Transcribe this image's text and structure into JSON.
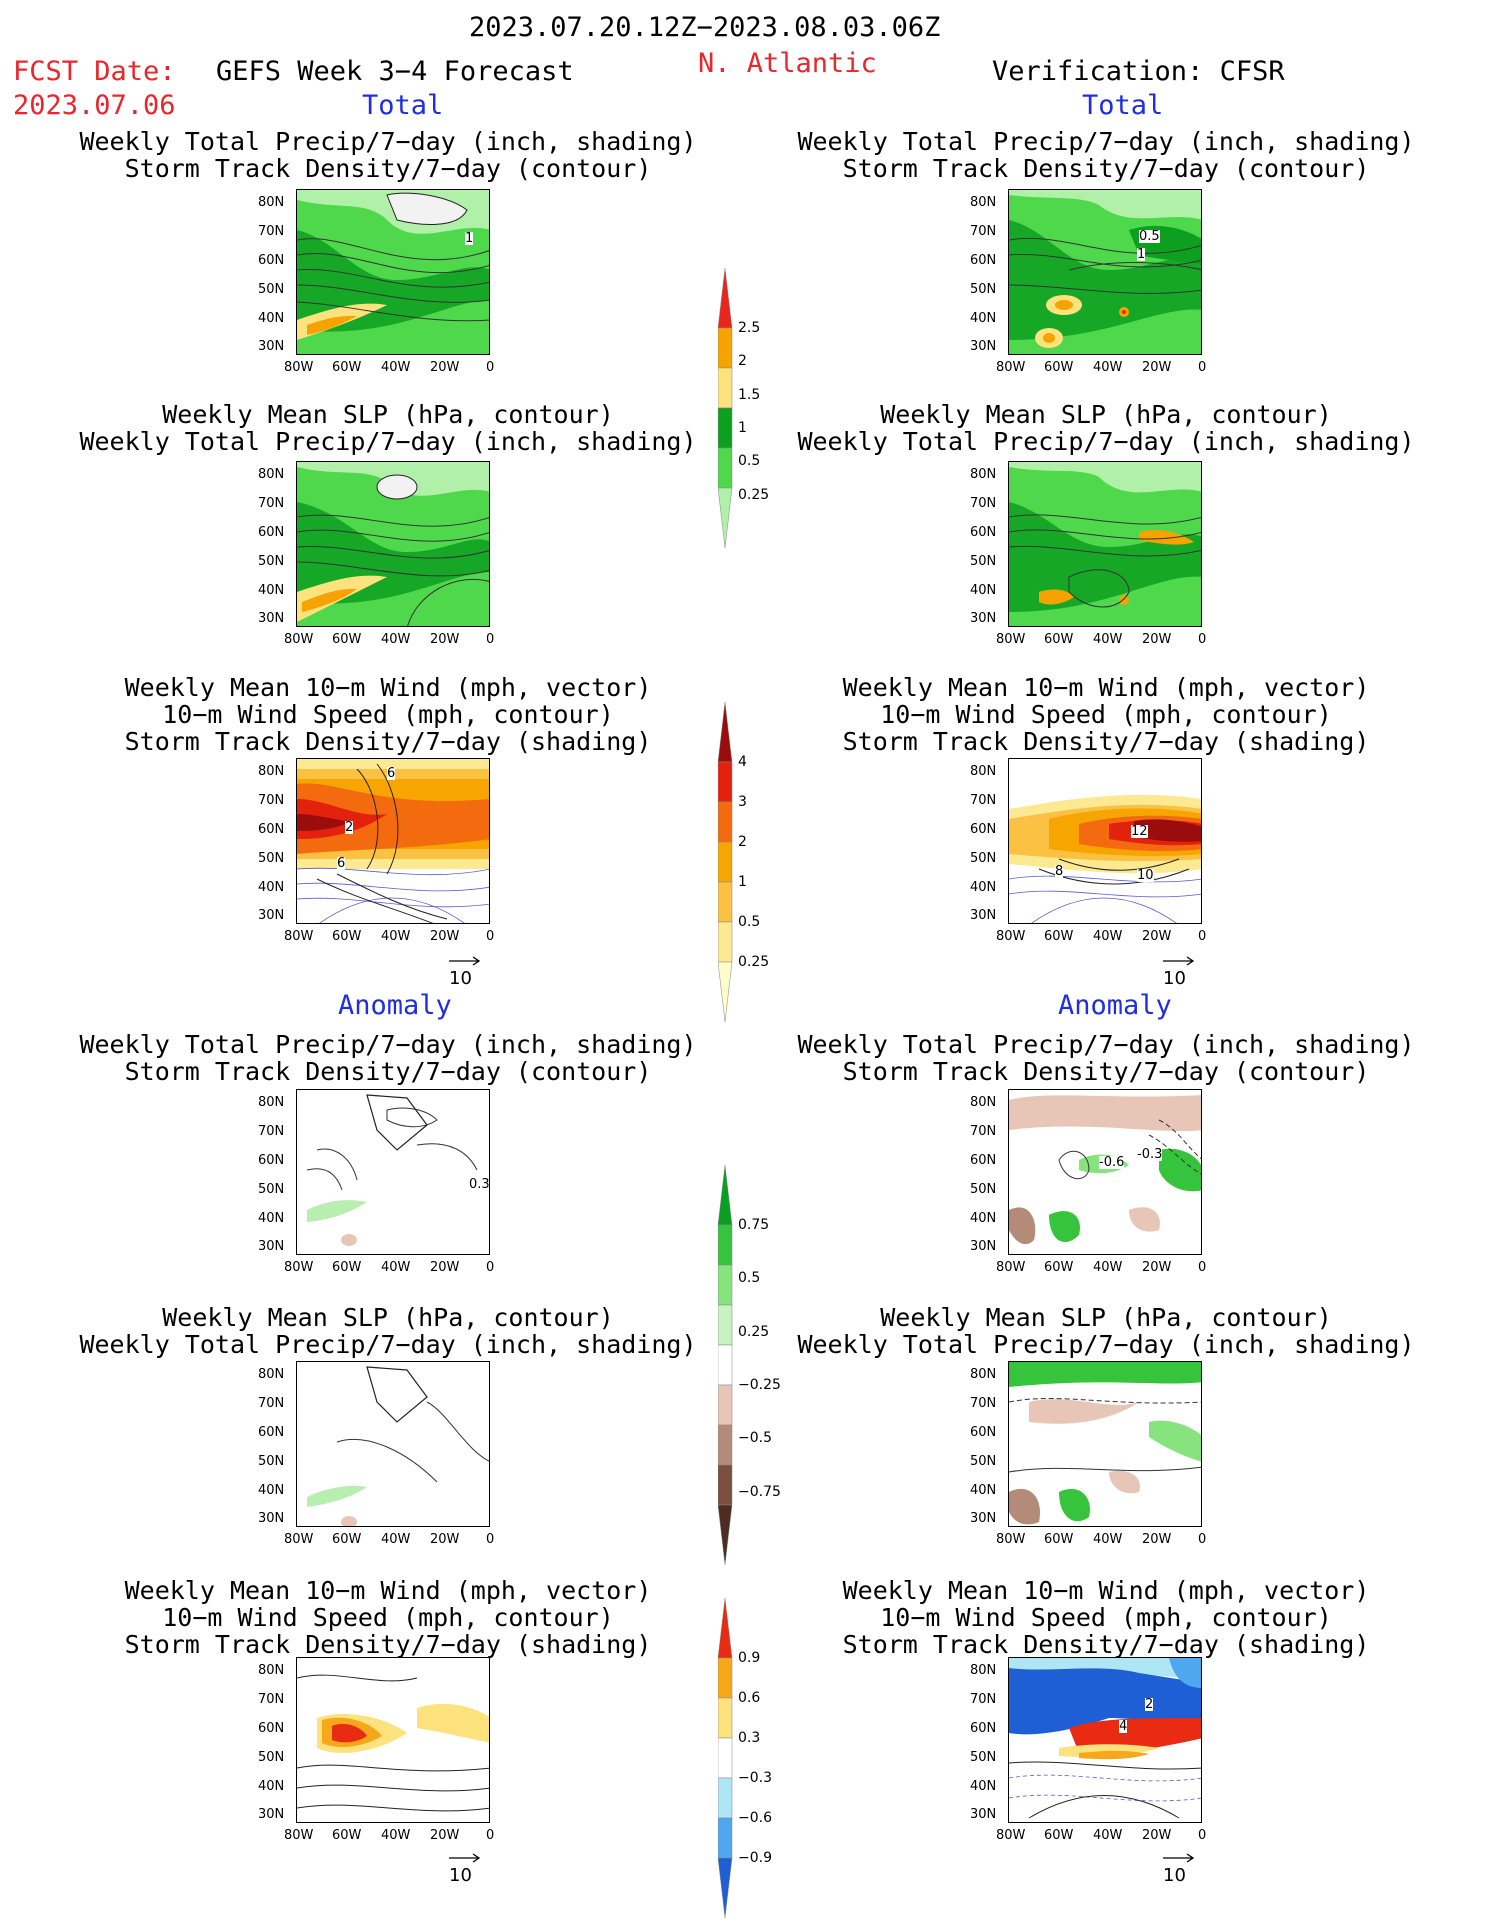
{
  "header": {
    "date_range": "2023.07.20.12Z−2023.08.03.06Z",
    "fcst_label": "FCST Date:",
    "fcst_date": "2023.07.06",
    "forecast_name": "GEFS Week 3−4 Forecast",
    "region": "N. Atlantic",
    "verification": "Verification: CFSR",
    "section_total": "Total",
    "section_anomaly": "Anomaly"
  },
  "titles": {
    "precip_storm": [
      "Weekly Total Precip/7−day (inch, shading)",
      "Storm Track Density/7−day (contour)"
    ],
    "slp_precip": [
      "Weekly Mean SLP (hPa, contour)",
      "Weekly Total Precip/7−day (inch, shading)"
    ],
    "wind": [
      "Weekly Mean 10−m Wind (mph, vector)",
      "10−m Wind Speed (mph, contour)",
      "Storm Track Density/7−day (shading)"
    ]
  },
  "axes": {
    "lat_labels": [
      "80N",
      "70N",
      "60N",
      "50N",
      "40N",
      "30N"
    ],
    "lon_labels": [
      "80W",
      "60W",
      "40W",
      "20W",
      "0"
    ],
    "vector_ref": "10"
  },
  "colorbars": {
    "precip_total": {
      "labels": [
        "2.5",
        "2",
        "1.5",
        "1",
        "0.5",
        "0.25"
      ],
      "colors": [
        "#e8261c",
        "#f6a300",
        "#fde27d",
        "#0d9f20",
        "#4fd84b",
        "#b0f0a8"
      ]
    },
    "storm_total": {
      "labels": [
        "4",
        "3",
        "2",
        "1",
        "0.5",
        "0.25"
      ],
      "colors": [
        "#9b0d0d",
        "#e3220e",
        "#f46a0e",
        "#f7a500",
        "#fac142",
        "#fde992",
        "#fefcc8"
      ]
    },
    "precip_anom": {
      "labels": [
        "0.75",
        "0.5",
        "0.25",
        "−0.25",
        "−0.5",
        "−0.75"
      ],
      "colors": [
        "#0a9e22",
        "#36c43d",
        "#86e37d",
        "#c8f2c2",
        "#ffffff",
        "#e7c6b8",
        "#b48b79",
        "#7a4f3e",
        "#4f2c22"
      ]
    },
    "storm_anom": {
      "labels": [
        "0.9",
        "0.6",
        "0.3",
        "−0.3",
        "−0.6",
        "−0.9"
      ],
      "colors": [
        "#e82b12",
        "#f7a71a",
        "#fde27e",
        "#ffffff",
        "#aee6f5",
        "#4fa8ef",
        "#1e5fd6"
      ]
    }
  },
  "contour_labels": {
    "l_precip_total": "1",
    "r_precip_total": [
      "0.5",
      "1"
    ],
    "l_wind_total": [
      "6",
      "2",
      "6"
    ],
    "r_wind_total": [
      "12",
      "10",
      "8"
    ],
    "l_precip_anom": "0.3",
    "r_precip_anom": [
      "-0.6",
      "-0.3"
    ],
    "r_wind_anom": [
      "2",
      "4"
    ]
  }
}
